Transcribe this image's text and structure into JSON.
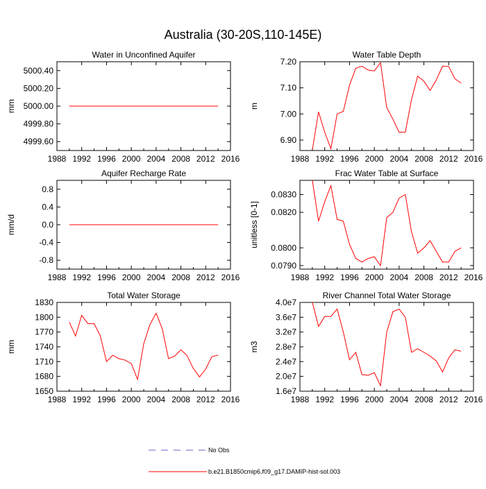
{
  "figure": {
    "title": "Australia (30-20S,110-145E)",
    "x_ticks": [
      "1988",
      "1992",
      "1996",
      "2000",
      "2004",
      "2008",
      "2012",
      "2016"
    ],
    "line_color": "#ff0000",
    "obs_color": "#6666cc"
  },
  "legend": {
    "obs_label": "No Obs",
    "model_label": "b.e21.B1850cmip6.f09_g17.DAMIP-hist-sol.003"
  },
  "chart_data": [
    {
      "type": "line",
      "title": "Water in Unconfined Aquifer",
      "ylabel": "mm",
      "xlim": [
        1988,
        2016
      ],
      "ylim": [
        4999.5,
        5000.5
      ],
      "yticks": [
        4999.6,
        4999.8,
        5000.0,
        5000.2,
        5000.4
      ],
      "ytick_labels": [
        "4999.60",
        "4999.80",
        "5000.00",
        "5000.20",
        "5000.40"
      ],
      "x": [
        1990,
        1991,
        1992,
        1993,
        1994,
        1995,
        1996,
        1997,
        1998,
        1999,
        2000,
        2001,
        2002,
        2003,
        2004,
        2005,
        2006,
        2007,
        2008,
        2009,
        2010,
        2011,
        2012,
        2013,
        2014
      ],
      "values": [
        5000,
        5000,
        5000,
        5000,
        5000,
        5000,
        5000,
        5000,
        5000,
        5000,
        5000,
        5000,
        5000,
        5000,
        5000,
        5000,
        5000,
        5000,
        5000,
        5000,
        5000,
        5000,
        5000,
        5000,
        5000
      ]
    },
    {
      "type": "line",
      "title": "Water Table Depth",
      "ylabel": "m",
      "xlim": [
        1988,
        2016
      ],
      "ylim": [
        6.86,
        7.2
      ],
      "yticks": [
        6.9,
        7.0,
        7.1,
        7.2
      ],
      "ytick_labels": [
        "6.90",
        "7.00",
        "7.10",
        "7.20"
      ],
      "x": [
        1990,
        1991,
        1992,
        1993,
        1994,
        1995,
        1996,
        1997,
        1998,
        1999,
        2000,
        2001,
        2002,
        2003,
        2004,
        2005,
        2006,
        2007,
        2008,
        2009,
        2010,
        2011,
        2012,
        2013,
        2014
      ],
      "values": [
        6.862,
        7.008,
        6.93,
        6.867,
        7.0,
        7.01,
        7.11,
        7.175,
        7.183,
        7.168,
        7.165,
        7.196,
        7.025,
        6.98,
        6.93,
        6.93,
        7.055,
        7.145,
        7.125,
        7.09,
        7.13,
        7.183,
        7.182,
        7.135,
        7.118
      ]
    },
    {
      "type": "line",
      "title": "Aquifer Recharge Rate",
      "ylabel": "mm/d",
      "xlim": [
        1988,
        2016
      ],
      "ylim": [
        -1.0,
        1.0
      ],
      "yticks": [
        -0.8,
        -0.4,
        0.0,
        0.4,
        0.8
      ],
      "ytick_labels": [
        "-0.8",
        "-0.4",
        "0.0",
        "0.4",
        "0.8"
      ],
      "x": [
        1990,
        1991,
        1992,
        1993,
        1994,
        1995,
        1996,
        1997,
        1998,
        1999,
        2000,
        2001,
        2002,
        2003,
        2004,
        2005,
        2006,
        2007,
        2008,
        2009,
        2010,
        2011,
        2012,
        2013,
        2014
      ],
      "values": [
        0,
        0,
        0,
        0,
        0,
        0,
        0,
        0,
        0,
        0,
        0,
        0,
        0,
        0,
        0,
        0,
        0,
        0,
        0,
        0,
        0,
        0,
        0,
        0,
        0
      ]
    },
    {
      "type": "line",
      "title": "Frac Water Table at Surface",
      "ylabel": "unitless [0-1]",
      "xlim": [
        1988,
        2016
      ],
      "ylim": [
        0.0788,
        0.0838
      ],
      "yticks": [
        0.079,
        0.08,
        0.082,
        0.083
      ],
      "ytick_labels": [
        "0.0790",
        "0.0800",
        "0.0820",
        "0.0830"
      ],
      "x": [
        1990,
        1991,
        1992,
        1993,
        1994,
        1995,
        1996,
        1997,
        1998,
        1999,
        2000,
        2001,
        2002,
        2003,
        2004,
        2005,
        2006,
        2007,
        2008,
        2009,
        2010,
        2011,
        2012,
        2013,
        2014
      ],
      "values": [
        0.0838,
        0.0815,
        0.0826,
        0.0835,
        0.0816,
        0.0815,
        0.0802,
        0.0794,
        0.0792,
        0.0794,
        0.0795,
        0.079,
        0.0817,
        0.082,
        0.0828,
        0.083,
        0.0809,
        0.0797,
        0.08,
        0.0804,
        0.0798,
        0.0792,
        0.0792,
        0.0798,
        0.08
      ]
    },
    {
      "type": "line",
      "title": "Total Water Storage",
      "ylabel": "mm",
      "xlim": [
        1988,
        2016
      ],
      "ylim": [
        1650,
        1830
      ],
      "yticks": [
        1650,
        1680,
        1710,
        1740,
        1770,
        1800,
        1830
      ],
      "ytick_labels": [
        "1650",
        "1680",
        "1710",
        "1740",
        "1770",
        "1800",
        "1830"
      ],
      "x": [
        1990,
        1991,
        1992,
        1993,
        1994,
        1995,
        1996,
        1997,
        1998,
        1999,
        2000,
        2001,
        2002,
        2003,
        2004,
        2005,
        2006,
        2007,
        2008,
        2009,
        2010,
        2011,
        2012,
        2013,
        2014
      ],
      "values": [
        1790,
        1762,
        1804,
        1787,
        1787,
        1762,
        1710,
        1723,
        1716,
        1713,
        1706,
        1674,
        1746,
        1785,
        1808,
        1776,
        1716,
        1721,
        1734,
        1722,
        1696,
        1679,
        1695,
        1720,
        1723
      ]
    },
    {
      "type": "line",
      "title": "River Channel Total Water Storage",
      "ylabel": "m3",
      "xlim": [
        1988,
        2016
      ],
      "ylim": [
        16000000.0,
        40000000.0
      ],
      "yticks": [
        16000000.0,
        20000000.0,
        24000000.0,
        28000000.0,
        32000000.0,
        36000000.0,
        40000000.0
      ],
      "ytick_labels": [
        "1.6e7",
        "2.0e7",
        "2.4e7",
        "2.8e7",
        "3.2e7",
        "3.6e7",
        "4.0e7"
      ],
      "x": [
        1990,
        1991,
        1992,
        1993,
        1994,
        1995,
        1996,
        1997,
        1998,
        1999,
        2000,
        2001,
        2002,
        2003,
        2004,
        2005,
        2006,
        2007,
        2008,
        2009,
        2010,
        2011,
        2012,
        2013,
        2014
      ],
      "values": [
        40000000.0,
        33500000.0,
        36200000.0,
        36200000.0,
        38200000.0,
        32000000.0,
        24500000.0,
        26500000.0,
        20500000.0,
        20300000.0,
        21000000.0,
        17500000.0,
        32000000.0,
        37500000.0,
        38200000.0,
        36000000.0,
        26500000.0,
        27500000.0,
        26500000.0,
        25500000.0,
        24200000.0,
        21200000.0,
        25000000.0,
        27200000.0,
        26800000.0
      ]
    }
  ]
}
